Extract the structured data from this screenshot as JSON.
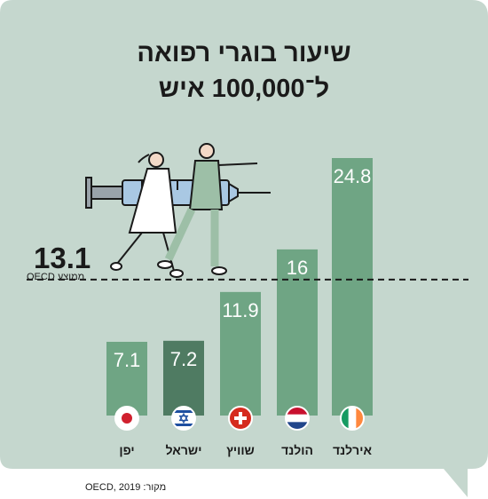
{
  "title_line1": "שיעור בוגרי רפואה",
  "title_line2": "ל־100,000 איש",
  "average": {
    "value": "13.1",
    "label": "ממוצע OECD"
  },
  "source": "מקור: OECD, 2019",
  "colors": {
    "background": "#c5d7ce",
    "bar": "#6fa584",
    "bar_israel": "#4f7b62",
    "value_text": "#ffffff"
  },
  "chart_data": {
    "type": "bar",
    "title": "שיעור בוגרי רפואה ל־100,000 איש",
    "categories": [
      "יפן",
      "ישראל",
      "שוויץ",
      "הולנד",
      "אירלנד"
    ],
    "values": [
      7.1,
      7.2,
      11.9,
      16,
      24.8
    ],
    "value_labels": [
      "7.1",
      "7.2",
      "11.9",
      "16",
      "24.8"
    ],
    "highlight": "ישראל",
    "reference_line": {
      "value": 13.1,
      "label": "ממוצע OECD"
    },
    "flags": [
      "japan-flag-icon",
      "israel-flag-icon",
      "switzerland-flag-icon",
      "netherlands-flag-icon",
      "ireland-flag-icon"
    ],
    "ylim": [
      0,
      26
    ],
    "grid": false,
    "legend": "none"
  }
}
